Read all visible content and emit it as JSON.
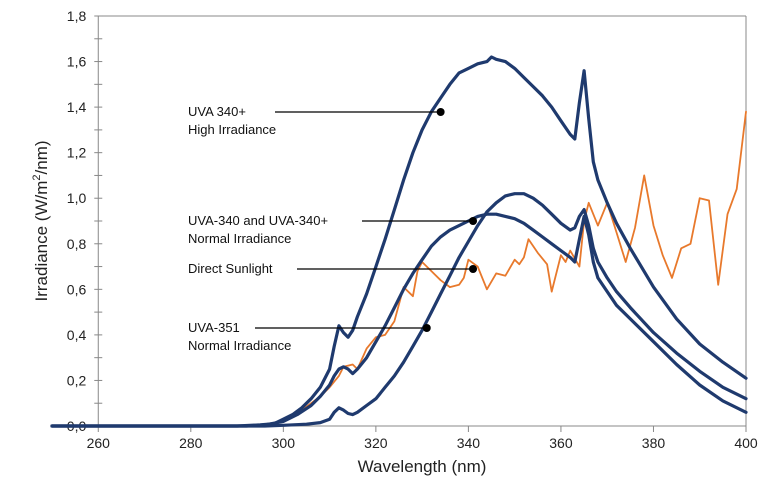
{
  "chart_data": {
    "type": "line",
    "title": "",
    "xlabel": "Wavelength (nm)",
    "ylabel_parts": [
      "Irradiance (W/m",
      "2",
      "/nm)"
    ],
    "xlim": [
      250,
      400
    ],
    "ylim": [
      0,
      1.8
    ],
    "xticks": [
      260,
      280,
      300,
      320,
      340,
      360,
      380,
      400
    ],
    "xtick_labels": [
      "260",
      "280",
      "300",
      "320",
      "340",
      "360",
      "380",
      "400"
    ],
    "yticks": [
      0,
      0.2,
      0.4,
      0.6,
      0.8,
      1.0,
      1.2,
      1.4,
      1.6,
      1.8
    ],
    "ytick_labels": [
      "0,0",
      "0,2",
      "0,4",
      "0,6",
      "0,8",
      "1,0",
      "1,2",
      "1,4",
      "1,6",
      "1,8"
    ],
    "grid": false,
    "colors": {
      "lamp": "#1f3a6e",
      "sun": "#e8792c",
      "axis": "#888888",
      "annotation": "#000000"
    },
    "series": [
      {
        "name": "UVA 340+ High Irradiance",
        "color": "#1f3a6e",
        "x": [
          250,
          290,
          295,
          298,
          300,
          302,
          304,
          306,
          308,
          310,
          311,
          312,
          313,
          314,
          315,
          316,
          318,
          320,
          322,
          324,
          326,
          328,
          330,
          332,
          334,
          336,
          338,
          340,
          342,
          344,
          345,
          346,
          348,
          350,
          352,
          354,
          356,
          358,
          360,
          362,
          363,
          364,
          365,
          366,
          367,
          368,
          370,
          372,
          375,
          380,
          385,
          390,
          395,
          400
        ],
        "y": [
          0,
          0,
          0.005,
          0.01,
          0.03,
          0.05,
          0.08,
          0.12,
          0.17,
          0.25,
          0.35,
          0.44,
          0.41,
          0.39,
          0.42,
          0.48,
          0.58,
          0.7,
          0.82,
          0.95,
          1.08,
          1.2,
          1.3,
          1.38,
          1.44,
          1.5,
          1.55,
          1.57,
          1.59,
          1.6,
          1.62,
          1.61,
          1.6,
          1.57,
          1.53,
          1.49,
          1.45,
          1.4,
          1.34,
          1.28,
          1.26,
          1.42,
          1.56,
          1.35,
          1.16,
          1.08,
          0.98,
          0.89,
          0.78,
          0.61,
          0.47,
          0.36,
          0.28,
          0.21
        ]
      },
      {
        "name": "UVA-340 and UVA-340+ Normal Irradiance",
        "color": "#1f3a6e",
        "x": [
          250,
          292,
          296,
          300,
          303,
          306,
          308,
          310,
          311,
          312,
          313,
          314,
          315,
          316,
          318,
          320,
          322,
          324,
          326,
          328,
          330,
          332,
          334,
          336,
          338,
          340,
          342,
          344,
          346,
          348,
          350,
          352,
          354,
          356,
          358,
          360,
          362,
          363,
          364,
          365,
          366,
          367,
          368,
          370,
          372,
          375,
          380,
          385,
          390,
          395,
          400
        ],
        "y": [
          0,
          0,
          0.005,
          0.02,
          0.05,
          0.09,
          0.13,
          0.18,
          0.22,
          0.25,
          0.26,
          0.25,
          0.23,
          0.25,
          0.3,
          0.37,
          0.44,
          0.52,
          0.6,
          0.67,
          0.73,
          0.79,
          0.83,
          0.86,
          0.88,
          0.9,
          0.92,
          0.93,
          0.93,
          0.92,
          0.91,
          0.89,
          0.86,
          0.83,
          0.8,
          0.77,
          0.74,
          0.72,
          0.82,
          0.92,
          0.84,
          0.72,
          0.65,
          0.59,
          0.53,
          0.47,
          0.37,
          0.27,
          0.18,
          0.11,
          0.06
        ]
      },
      {
        "name": "UVA-351 Normal Irradiance",
        "color": "#1f3a6e",
        "x": [
          250,
          296,
          300,
          305,
          308,
          310,
          311,
          312,
          313,
          314,
          315,
          316,
          318,
          320,
          322,
          324,
          326,
          328,
          330,
          332,
          334,
          336,
          338,
          340,
          342,
          344,
          346,
          348,
          350,
          352,
          354,
          356,
          358,
          360,
          362,
          363,
          364,
          365,
          366,
          367,
          368,
          370,
          372,
          375,
          380,
          385,
          390,
          395,
          400
        ],
        "y": [
          0,
          0,
          0.003,
          0.008,
          0.015,
          0.03,
          0.06,
          0.08,
          0.07,
          0.055,
          0.05,
          0.06,
          0.09,
          0.12,
          0.17,
          0.22,
          0.28,
          0.35,
          0.42,
          0.5,
          0.58,
          0.66,
          0.74,
          0.81,
          0.88,
          0.94,
          0.98,
          1.01,
          1.02,
          1.02,
          1.0,
          0.97,
          0.93,
          0.89,
          0.86,
          0.87,
          0.92,
          0.95,
          0.88,
          0.78,
          0.72,
          0.65,
          0.59,
          0.52,
          0.41,
          0.32,
          0.24,
          0.17,
          0.12
        ]
      },
      {
        "name": "Direct Sunlight",
        "color": "#e8792c",
        "x": [
          296,
          300,
          302,
          304,
          306,
          308,
          310,
          312,
          313,
          315,
          316,
          318,
          320,
          322,
          324,
          326,
          328,
          329,
          330,
          332,
          334,
          336,
          338,
          339,
          340,
          342,
          344,
          346,
          348,
          350,
          351,
          352,
          353,
          355,
          357,
          358,
          360,
          361,
          362,
          364,
          365,
          366,
          368,
          370,
          372,
          374,
          376,
          378,
          380,
          382,
          384,
          386,
          388,
          390,
          392,
          394,
          396,
          398,
          400
        ],
        "y": [
          0,
          0.02,
          0.05,
          0.07,
          0.1,
          0.13,
          0.17,
          0.22,
          0.26,
          0.27,
          0.25,
          0.34,
          0.39,
          0.4,
          0.46,
          0.61,
          0.57,
          0.68,
          0.72,
          0.68,
          0.64,
          0.61,
          0.62,
          0.65,
          0.73,
          0.7,
          0.6,
          0.67,
          0.66,
          0.73,
          0.71,
          0.74,
          0.82,
          0.76,
          0.71,
          0.59,
          0.75,
          0.72,
          0.77,
          0.7,
          0.9,
          0.98,
          0.88,
          0.98,
          0.85,
          0.72,
          0.87,
          1.1,
          0.88,
          0.75,
          0.65,
          0.78,
          0.8,
          1.0,
          0.99,
          0.62,
          0.93,
          1.04,
          1.38
        ]
      }
    ],
    "annotations": [
      {
        "lines": [
          "UVA 340+",
          "High Irradiance"
        ],
        "point": [
          334,
          1.38
        ]
      },
      {
        "lines": [
          "UVA-340 and UVA-340+",
          "Normal Irradiance"
        ],
        "point": [
          341,
          0.9
        ]
      },
      {
        "lines": [
          "Direct Sunlight"
        ],
        "point": [
          341,
          0.69
        ]
      },
      {
        "lines": [
          "UVA-351",
          "Normal Irradiance"
        ],
        "point": [
          331,
          0.43
        ]
      }
    ]
  }
}
